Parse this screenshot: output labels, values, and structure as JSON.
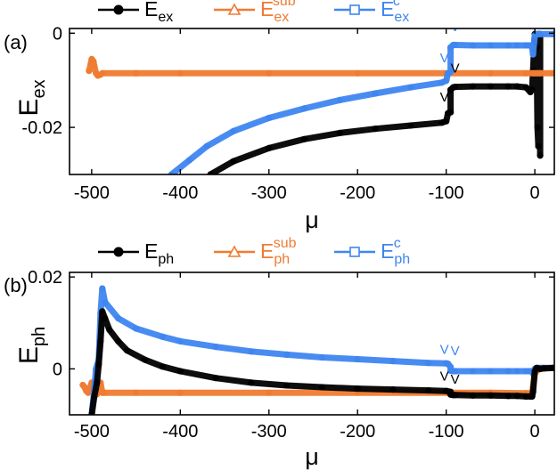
{
  "colors": {
    "black": "#000000",
    "orange": "#F07B32",
    "blue": "#3F86F0"
  },
  "chart_data": [
    {
      "type": "line",
      "panel_label": "(a)",
      "xlabel": "μ",
      "ylabel": {
        "main": "E",
        "sub": "ex"
      },
      "xlim": [
        -525,
        22
      ],
      "ylim": [
        -0.03,
        0.001
      ],
      "xticks": [
        -500,
        -400,
        -300,
        -200,
        -100,
        0
      ],
      "xtick_labels": [
        "-500",
        "-400",
        "-300",
        "-200",
        "-100",
        "0"
      ],
      "yticks": [
        0,
        -0.02
      ],
      "ytick_labels": [
        "0",
        "-0.02"
      ],
      "legend": [
        {
          "main": "E",
          "sub": "ex",
          "sup": "",
          "marker": "circle",
          "color": "#000000"
        },
        {
          "main": "E",
          "sub": "ex",
          "sup": "sub",
          "marker": "triangle",
          "color": "#F07B32"
        },
        {
          "main": "E",
          "sub": "ex",
          "sup": "c",
          "marker": "square",
          "color": "#3F86F0"
        }
      ],
      "series": [
        {
          "name": "E_ex",
          "color": "#000000",
          "x": [
            -366,
            -340,
            -300,
            -260,
            -220,
            -180,
            -140,
            -105,
            -100,
            -98,
            -95,
            -95,
            -92,
            -90,
            -70,
            -50,
            -30,
            -20,
            -10,
            -5,
            -3,
            -2,
            0,
            1,
            2,
            3,
            4,
            4,
            5,
            6,
            6
          ],
          "y": [
            -0.03,
            -0.0272,
            -0.0244,
            -0.0225,
            -0.0212,
            -0.0203,
            -0.0196,
            -0.019,
            -0.0187,
            -0.017,
            -0.0168,
            -0.012,
            -0.0115,
            -0.0114,
            -0.0113,
            -0.0113,
            -0.0113,
            -0.0113,
            -0.0115,
            -0.0125,
            -0.012,
            -0.008,
            -0.0002,
            -0.0002,
            -0.003,
            -0.02,
            -0.024,
            -0.0002,
            -0.0002,
            -0.026,
            -0.0002
          ]
        },
        {
          "name": "E_ex_sub",
          "color": "#F07B32",
          "x": [
            -503,
            -501,
            -500,
            -498,
            -497,
            -495,
            -493,
            -490,
            -488,
            -450,
            -400,
            -300,
            -200,
            -100,
            -50,
            -10,
            -2,
            0,
            2,
            4,
            6,
            20
          ],
          "y": [
            -0.008,
            -0.0065,
            -0.0055,
            -0.006,
            -0.007,
            -0.0085,
            -0.009,
            -0.0088,
            -0.0085,
            -0.0085,
            -0.0085,
            -0.0085,
            -0.0085,
            -0.0085,
            -0.0085,
            -0.0085,
            -0.0085,
            -0.0085,
            -0.0085,
            -0.0085,
            -0.0085,
            -0.0085
          ]
        },
        {
          "name": "E_ex_c",
          "color": "#3F86F0",
          "x": [
            -410,
            -390,
            -370,
            -340,
            -300,
            -260,
            -220,
            -180,
            -140,
            -105,
            -100,
            -98,
            -95,
            -95,
            -92,
            -90,
            -70,
            -50,
            -30,
            -20,
            -10,
            -5,
            -3,
            -2,
            0,
            2,
            3,
            4,
            6,
            20
          ],
          "y": [
            -0.03,
            -0.027,
            -0.024,
            -0.0208,
            -0.018,
            -0.016,
            -0.0142,
            -0.0128,
            -0.0115,
            -0.0105,
            -0.0101,
            -0.0085,
            -0.0082,
            -0.003,
            -0.0025,
            -0.0025,
            -0.0026,
            -0.0026,
            -0.0026,
            -0.0026,
            -0.0026,
            -0.0026,
            -0.003,
            -0.0045,
            -0.0005,
            -0.0003,
            -0.0002,
            -0.0002,
            -0.0002,
            -0.0002
          ]
        }
      ],
      "markers": [
        {
          "symbol": "V",
          "x": -102,
          "y": -0.0145,
          "color": "#000000"
        },
        {
          "symbol": "V",
          "x": -90,
          "y": -0.0084,
          "color": "#000000"
        },
        {
          "symbol": "V",
          "x": -102,
          "y": -0.0062,
          "color": "#3F86F0"
        },
        {
          "symbol": "V",
          "x": -90,
          "y": 0.0004,
          "color": "#3F86F0"
        }
      ]
    },
    {
      "type": "line",
      "panel_label": "(b)",
      "xlabel": "μ",
      "ylabel": {
        "main": "E",
        "sub": "ph"
      },
      "xlim": [
        -525,
        22
      ],
      "ylim": [
        -0.01,
        0.021
      ],
      "xticks": [
        -500,
        -400,
        -300,
        -200,
        -100,
        0
      ],
      "xtick_labels": [
        "-500",
        "-400",
        "-300",
        "-200",
        "-100",
        "0"
      ],
      "yticks": [
        0.02,
        0
      ],
      "ytick_labels": [
        "0.02",
        "0"
      ],
      "legend": [
        {
          "main": "E",
          "sub": "ph",
          "sup": "",
          "marker": "circle",
          "color": "#000000"
        },
        {
          "main": "E",
          "sub": "ph",
          "sup": "sub",
          "marker": "triangle",
          "color": "#F07B32"
        },
        {
          "main": "E",
          "sub": "ph",
          "sup": "c",
          "marker": "square",
          "color": "#3F86F0"
        }
      ],
      "series": [
        {
          "name": "E_ph_sub",
          "color": "#F07B32",
          "x": [
            -510,
            -508,
            -506,
            -504,
            -502,
            -500,
            -497,
            -494,
            -492,
            -490,
            -488,
            -486,
            -450,
            -400,
            -300,
            -200,
            -100,
            -50,
            -10,
            -3,
            -2,
            0,
            2,
            4,
            6,
            8,
            20
          ],
          "y": [
            -0.0035,
            -0.004,
            -0.0048,
            -0.0052,
            -0.0042,
            -0.003,
            -0.004,
            -0.0055,
            -0.0042,
            -0.003,
            -0.0052,
            -0.0052,
            -0.0052,
            -0.0052,
            -0.0052,
            -0.0052,
            -0.0052,
            -0.0052,
            -0.0053,
            -0.0053,
            -0.004,
            -0.001,
            -0.0005,
            -0.0002,
            0.0,
            0.0002,
            0.0002
          ]
        },
        {
          "name": "E_ph_c",
          "color": "#3F86F0",
          "x": [
            -500,
            -497,
            -495,
            -492,
            -490,
            -488,
            -485,
            -470,
            -450,
            -420,
            -400,
            -360,
            -320,
            -280,
            -240,
            -200,
            -160,
            -120,
            -100,
            -98,
            -95,
            -95,
            -92,
            -90,
            -70,
            -50,
            -30,
            -20,
            -10,
            -5,
            -3,
            -2,
            0,
            2,
            4,
            6,
            10,
            20
          ],
          "y": [
            -0.01,
            -0.0045,
            0.0,
            0.002,
            0.012,
            0.0175,
            0.0145,
            0.011,
            0.0088,
            0.007,
            0.006,
            0.0048,
            0.0038,
            0.0031,
            0.0025,
            0.0021,
            0.0017,
            0.0013,
            0.0012,
            0.0011,
            0.0004,
            -0.0004,
            -0.0005,
            -0.0005,
            -0.0005,
            -0.0005,
            -0.0005,
            -0.0005,
            -0.0005,
            -0.0005,
            -0.0005,
            -0.001,
            0.0,
            0.0002,
            0.0002,
            0.0002,
            0.0002,
            0.0002
          ]
        },
        {
          "name": "E_ph",
          "color": "#000000",
          "x": [
            -500,
            -497,
            -494,
            -492,
            -490,
            -488,
            -485,
            -480,
            -470,
            -460,
            -440,
            -420,
            -400,
            -360,
            -320,
            -280,
            -240,
            -200,
            -160,
            -120,
            -100,
            -98,
            -95,
            -95,
            -92,
            -90,
            -70,
            -50,
            -30,
            -20,
            -10,
            -5,
            -3,
            -2,
            0,
            2,
            4,
            6,
            10,
            20
          ],
          "y": [
            -0.01,
            -0.006,
            -0.003,
            0.001,
            0.006,
            0.0125,
            0.011,
            0.0085,
            0.006,
            0.004,
            0.002,
            0.0005,
            -0.0005,
            -0.002,
            -0.003,
            -0.0036,
            -0.004,
            -0.0043,
            -0.0045,
            -0.0047,
            -0.0048,
            -0.0049,
            -0.005,
            -0.0056,
            -0.0057,
            -0.0057,
            -0.0058,
            -0.0058,
            -0.0059,
            -0.0059,
            -0.006,
            -0.006,
            -0.006,
            -0.005,
            -0.0005,
            0.0002,
            0.0001,
            0.0,
            0.0001,
            0.0002
          ]
        }
      ],
      "markers": [
        {
          "symbol": "V",
          "x": -102,
          "y": -0.0025,
          "color": "#000000"
        },
        {
          "symbol": "V",
          "x": -90,
          "y": -0.0032,
          "color": "#000000"
        },
        {
          "symbol": "V",
          "x": -102,
          "y": 0.0033,
          "color": "#3F86F0"
        },
        {
          "symbol": "V",
          "x": -90,
          "y": 0.003,
          "color": "#3F86F0"
        }
      ]
    }
  ]
}
